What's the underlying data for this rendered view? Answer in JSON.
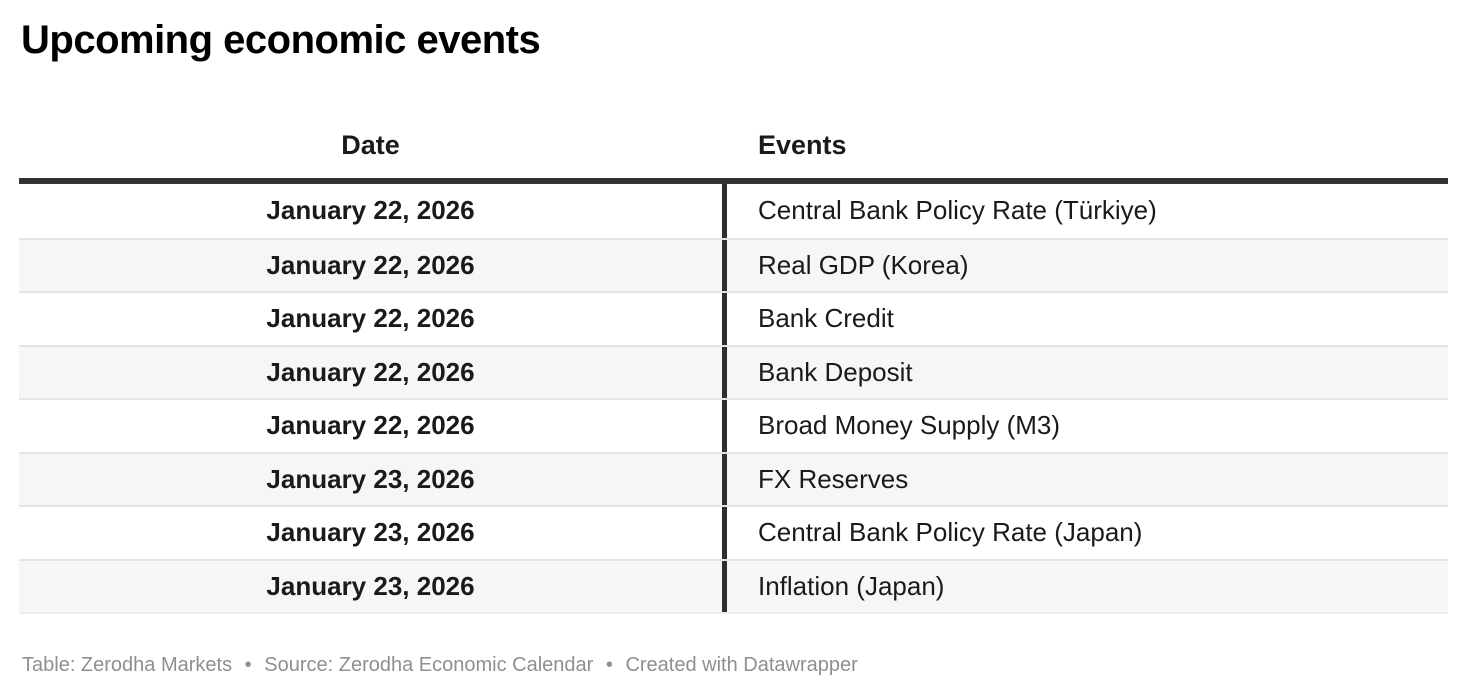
{
  "title": "Upcoming economic events",
  "table": {
    "headers": [
      "Date",
      "Events"
    ],
    "rows": [
      {
        "date": "January 22, 2026",
        "event": "Central Bank Policy Rate (Türkiye)"
      },
      {
        "date": "January 22, 2026",
        "event": "Real GDP (Korea)"
      },
      {
        "date": "January 22, 2026",
        "event": "Bank Credit"
      },
      {
        "date": "January 22, 2026",
        "event": "Bank Deposit"
      },
      {
        "date": "January 22, 2026",
        "event": "Broad Money Supply (M3)"
      },
      {
        "date": "January 23, 2026",
        "event": "FX Reserves"
      },
      {
        "date": "January 23, 2026",
        "event": "Central Bank Policy Rate (Japan)"
      },
      {
        "date": "January 23, 2026",
        "event": "Inflation (Japan)"
      }
    ]
  },
  "footer": {
    "table_credit": "Table: Zerodha Markets",
    "separator": "•",
    "source_credit": "Source: Zerodha Economic Calendar",
    "created_with": "Created with Datawrapper"
  },
  "colors": {
    "text": "#1a1a1a",
    "header_border": "#333333",
    "column_divider": "#2e2e2e",
    "row_separator": "#e4e4e4",
    "alt_row_bg": "#f6f6f6",
    "footer_text": "#8f8f8f"
  },
  "chart_data": {
    "type": "table",
    "title": "Upcoming economic events",
    "columns": [
      "Date",
      "Events"
    ],
    "rows": [
      [
        "January 22, 2026",
        "Central Bank Policy Rate (Türkiye)"
      ],
      [
        "January 22, 2026",
        "Real GDP (Korea)"
      ],
      [
        "January 22, 2026",
        "Bank Credit"
      ],
      [
        "January 22, 2026",
        "Bank Deposit"
      ],
      [
        "January 22, 2026",
        "Broad Money Supply (M3)"
      ],
      [
        "January 23, 2026",
        "FX Reserves"
      ],
      [
        "January 23, 2026",
        "Central Bank Policy Rate (Japan)"
      ],
      [
        "January 23, 2026",
        "Inflation (Japan)"
      ]
    ],
    "layout_hints": {
      "date_column": "bold, centered",
      "events_column": "regular, left-aligned",
      "row_striping": "alternating white / light gray starting white",
      "header_rule": "thick dark line below header",
      "column_divider": "dark vertical line between columns (body rows only)"
    },
    "byline": "Table: Zerodha Markets • Source: Zerodha Economic Calendar • Created with Datawrapper"
  }
}
